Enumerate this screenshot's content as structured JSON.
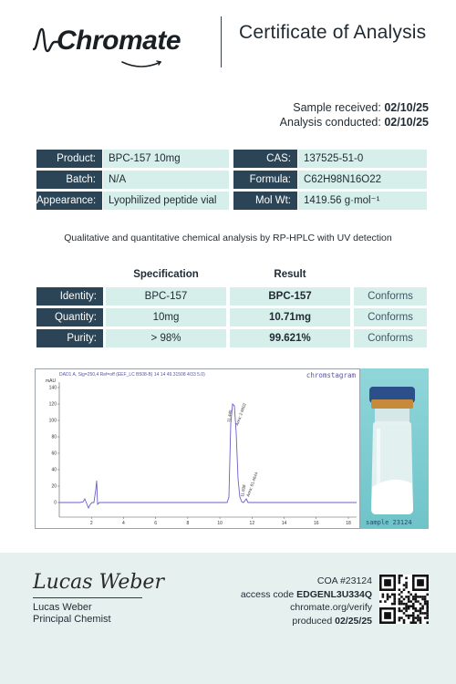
{
  "header": {
    "brand": "Chromate",
    "title": "Certificate of Analysis"
  },
  "dates": {
    "received_label": "Sample received:",
    "received_value": "02/10/25",
    "conducted_label": "Analysis conducted:",
    "conducted_value": "02/10/25"
  },
  "info": {
    "product_label": "Product:",
    "product_value": "BPC-157 10mg",
    "cas_label": "CAS:",
    "cas_value": "137525-51-0",
    "batch_label": "Batch:",
    "batch_value": "N/A",
    "formula_label": "Formula:",
    "formula_value": "C62H98N16O22",
    "appearance_label": "Appearance:",
    "appearance_value": "Lyophilized peptide vial",
    "molwt_label": "Mol Wt:",
    "molwt_value": "1419.56 g·mol⁻¹"
  },
  "subtitle": "Qualitative and quantitative chemical analysis by RP-HPLC with UV detection",
  "results": {
    "spec_header": "Specification",
    "result_header": "Result",
    "rows": [
      {
        "label": "Identity:",
        "spec": "BPC-157",
        "result": "BPC-157",
        "status": "Conforms"
      },
      {
        "label": "Quantity:",
        "spec": "10mg",
        "result": "10.71mg",
        "status": "Conforms"
      },
      {
        "label": "Purity:",
        "spec": "> 98%",
        "result": "99.621%",
        "status": "Conforms"
      }
    ]
  },
  "chromatogram": {
    "brand": "chromstagram",
    "header": "DAD1 A, Sig=250,4 Ref=off (EEF_LC B508-B) 14 14 49.31508 4/33 5.0)",
    "y_axis_label": "mAU",
    "y_ticks": [
      "140",
      "120",
      "100",
      "80",
      "60",
      "40",
      "20",
      "0"
    ],
    "x_ticks": [
      "2",
      "4",
      "6",
      "8",
      "10",
      "12",
      "14",
      "16",
      "18"
    ],
    "peak_labels": [
      "11.445",
      "Area: 2 6602",
      "11.938",
      "Area: 61.4644"
    ],
    "line_color": "#6a5fc8"
  },
  "vial_caption": "sample 23124",
  "footer": {
    "signature": "Lucas Weber",
    "name": "Lucas Weber",
    "role": "Principal Chemist",
    "coa_number": "COA #23124",
    "access_label": "access code",
    "access_code": "EDGENL3U334Q",
    "verify_url": "chromate.org/verify",
    "produced_label": "produced",
    "produced_date": "02/25/25"
  },
  "colors": {
    "label_bg": "#2b4556",
    "value_bg": "#d6efea",
    "footer_bg": "#e6f1ef"
  }
}
